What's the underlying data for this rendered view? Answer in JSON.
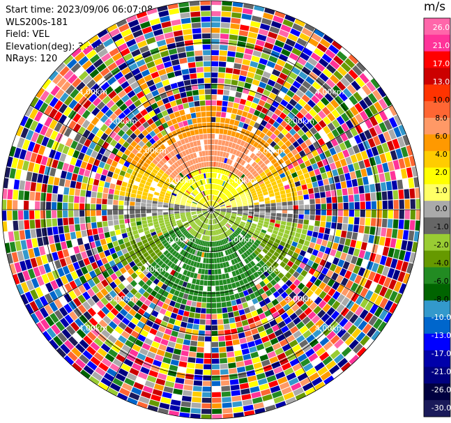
{
  "header": {
    "start_time": "Start time: 2023/09/06 06:07:08",
    "site": "WLS200s-181",
    "field": "Field: VEL",
    "elevation": "Elevation(deg): 35.30",
    "nrays": "NRays: 120"
  },
  "chart_data": {
    "type": "heatmap",
    "projection": "polar-ppi",
    "n_rays": 120,
    "range_rings_km": [
      1.0,
      2.0,
      3.0,
      4.0
    ],
    "ring_labels": [
      "1.00km",
      "2.00km",
      "3.00km",
      "4.00km"
    ],
    "colorbar": {
      "unit": "m/s",
      "ticks": [
        "26.0",
        "21.0",
        "17.0",
        "13.0",
        "10.0",
        "8.0",
        "6.0",
        "4.0",
        "2.0",
        "1.0",
        "0.0",
        "-1.0",
        "-2.0",
        "-4.0",
        "-6.0",
        "-8.0",
        "-10.0",
        "-13.0",
        "-17.0",
        "-21.0",
        "-26.0",
        "-30.0"
      ],
      "colors": [
        "#ff66aa",
        "#ff3399",
        "#ff0000",
        "#cc0000",
        "#ff3300",
        "#ff6633",
        "#ff9966",
        "#ff9900",
        "#ffcc00",
        "#ffff00",
        "#ffff66",
        "#aaaaaa",
        "#666666",
        "#99cc33",
        "#669900",
        "#228b22",
        "#006400",
        "#3399cc",
        "#0066cc",
        "#0000ff",
        "#0000aa",
        "#000080",
        "#000040",
        "#1a1a5a"
      ]
    },
    "velocity_pattern": {
      "north_half": "positive (approx 2 to 10 m/s, peak near 8.0 in north-east)",
      "south_half": "negative (approx -1 to -6 m/s, peak near -8.0 in south)",
      "zero_band": "west-east line, approx 0.0 m/s",
      "valid_range_km": 2.6
    }
  }
}
